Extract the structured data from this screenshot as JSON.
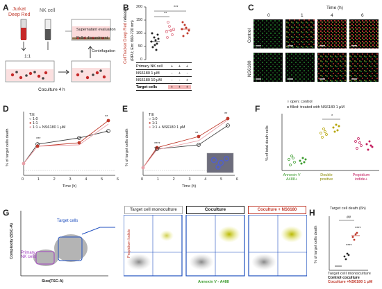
{
  "panels": {
    "A": {
      "label": "A",
      "jurkat_line1": "Jurkat",
      "jurkat_line2": "Deep Red",
      "nk": "NK cell",
      "ratio": "1:1",
      "coculture": "Coculture 4 h",
      "supernatant": "Supernatant evaluation",
      "pellet": "Pellet discardment",
      "centrifugation": "Centrifugation"
    },
    "B": {
      "label": "B",
      "ylabel_red": "CellTracker Deep Red",
      "ylabel_black": " release",
      "ylabel2": "(RFU; Em: 660-720 nm)",
      "yticks": [
        "0",
        "50",
        "100",
        "150",
        "200"
      ],
      "sig1": "**",
      "sig2": "***",
      "rows": [
        {
          "label": "Primary NK cell",
          "vals": [
            "+",
            "+",
            "+"
          ]
        },
        {
          "label": "NS6180 1 μM",
          "vals": [
            "-",
            "+",
            "-"
          ]
        },
        {
          "label": "NS6180 10 μM",
          "vals": [
            "-",
            "-",
            "+"
          ]
        }
      ],
      "target_label": "Target cells",
      "target_vals": [
        "+",
        "+",
        "+"
      ]
    },
    "C": {
      "label": "C",
      "time_title": "Time (h)",
      "times": [
        "0",
        "1",
        "4",
        "6"
      ],
      "rows": [
        "Control",
        "NS6180"
      ]
    },
    "D": {
      "label": "D",
      "ylabel": "% of target cells death",
      "xlabel": "Time (h)",
      "legend": [
        "T:E",
        "1:0",
        "1:1",
        "1:1 + NS6180 1 μM"
      ],
      "sig": [
        "***",
        "**"
      ],
      "xticks": [
        "0",
        "1",
        "2",
        "3",
        "4",
        "5",
        "6"
      ],
      "yticks": [
        "0",
        "20",
        "40",
        "60",
        "80",
        "100"
      ]
    },
    "E": {
      "label": "E",
      "ylabel": "% of target cells death",
      "xlabel": "Time (h)",
      "legend": [
        "T:E",
        "1:0",
        "1:1",
        "1:1 + NS6180 1 μM"
      ],
      "sig": [
        "****",
        "****",
        "**",
        "**"
      ],
      "xticks": [
        "0",
        "1",
        "2",
        "3",
        "4",
        "5",
        "6"
      ],
      "yticks": [
        "0",
        "20",
        "40",
        "60",
        "80",
        "100"
      ]
    },
    "F": {
      "label": "F",
      "legend_open": "open: control",
      "legend_filled": "filled: treated with NS6180 1 μM",
      "ylabel": "% of total death cells",
      "yticks": [
        "0",
        "20",
        "40",
        "60",
        "80"
      ],
      "sig": "*",
      "groups": [
        "Annexin V A488+",
        "Double positive",
        "Propidium iodide+"
      ]
    },
    "G": {
      "label": "G",
      "yaxis": "Complexity (SSC-A)",
      "xaxis": "Size(FSC-A)",
      "nk_label": "Primary NK cells",
      "target_label": "Target cells",
      "titles": [
        "Target cell monoculture",
        "Coculture",
        "Coculture + NS6180"
      ],
      "pi_label": "Propidium Iodide",
      "annexin_label": "Annexin V - A488"
    },
    "H": {
      "label": "H",
      "title": "Target cell death (6h)",
      "ylabel": "% of target cells death",
      "yticks": [
        "0",
        "20",
        "40",
        "60",
        "80",
        "100"
      ],
      "sig": [
        "****",
        "****",
        "##"
      ],
      "legend": [
        "Target cell monoculture",
        "Control coculture",
        "Coculture +NS6180 1 μM"
      ]
    }
  },
  "colors": {
    "red": "#c0392b",
    "green": "#3a9b2c",
    "blue": "#1f4fbf",
    "purple": "#a23fc0",
    "pink": "#e8a0a8"
  }
}
